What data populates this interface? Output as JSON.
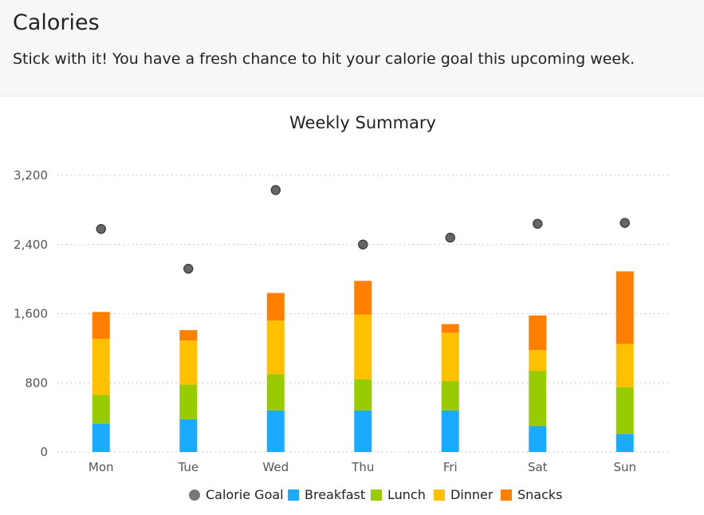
{
  "header": {
    "title": "Calories",
    "message": "Stick with it! You have a fresh chance to hit your calorie goal this upcoming week."
  },
  "chart_data": {
    "type": "bar",
    "stacked": true,
    "title": "Weekly Summary",
    "xlabel": "",
    "ylabel": "",
    "categories": [
      "Mon",
      "Tue",
      "Wed",
      "Thu",
      "Fri",
      "Sat",
      "Sun"
    ],
    "ylim": [
      0,
      3200
    ],
    "yticks": [
      0,
      800,
      1600,
      2400,
      3200
    ],
    "ytick_labels": [
      "0",
      "800",
      "1,600",
      "2,400",
      "3,200"
    ],
    "grid": true,
    "legend_position": "bottom",
    "series": [
      {
        "name": "Breakfast",
        "color": "#1aabff",
        "values": [
          330,
          380,
          480,
          480,
          480,
          300,
          210
        ]
      },
      {
        "name": "Lunch",
        "color": "#99cc00",
        "values": [
          330,
          400,
          420,
          360,
          340,
          640,
          540
        ]
      },
      {
        "name": "Dinner",
        "color": "#ffc000",
        "values": [
          650,
          510,
          620,
          750,
          560,
          240,
          500
        ]
      },
      {
        "name": "Snacks",
        "color": "#ff8000",
        "values": [
          310,
          120,
          320,
          390,
          100,
          400,
          840
        ]
      }
    ],
    "goal": {
      "name": "Calorie Goal",
      "color": "#777777",
      "values": [
        2580,
        2120,
        3030,
        2400,
        2480,
        2640,
        2650
      ]
    }
  }
}
